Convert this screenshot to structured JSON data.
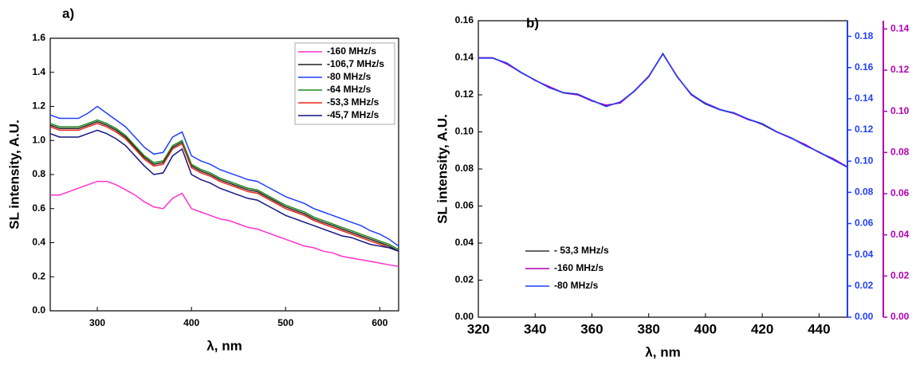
{
  "chart_data": [
    {
      "type": "line",
      "title": "a)",
      "xlabel": "λ, nm",
      "ylabel": "SL intensity, A.U.",
      "legend": "upper right",
      "xlim": [
        250,
        620
      ],
      "xticks": [
        300,
        400,
        500,
        600
      ],
      "ylim": [
        0,
        1.6
      ],
      "yticks": [
        {
          "value": 0,
          "label": "0.0"
        },
        0.2,
        0.4,
        0.6,
        0.8,
        {
          "value": 1,
          "label": "1.0"
        },
        1.2,
        1.4,
        1.6
      ],
      "x": [
        250,
        260,
        270,
        280,
        290,
        300,
        310,
        320,
        330,
        340,
        350,
        360,
        370,
        380,
        390,
        400,
        410,
        420,
        430,
        440,
        450,
        460,
        470,
        480,
        490,
        500,
        510,
        520,
        530,
        540,
        550,
        560,
        570,
        580,
        590,
        600,
        610,
        620
      ],
      "series": [
        {
          "name": "-160 MHz/s",
          "color": "#ff33cc",
          "values": [
            0.68,
            0.68,
            0.7,
            0.72,
            0.74,
            0.76,
            0.76,
            0.74,
            0.71,
            0.68,
            0.64,
            0.61,
            0.6,
            0.66,
            0.69,
            0.6,
            0.58,
            0.56,
            0.54,
            0.53,
            0.51,
            0.49,
            0.48,
            0.46,
            0.44,
            0.42,
            0.4,
            0.38,
            0.37,
            0.35,
            0.34,
            0.32,
            0.31,
            0.3,
            0.29,
            0.28,
            0.27,
            0.26
          ]
        },
        {
          "name": "-106,7 MHz/s",
          "color": "#222222",
          "values": [
            1.09,
            1.07,
            1.07,
            1.07,
            1.09,
            1.11,
            1.09,
            1.06,
            1.02,
            0.96,
            0.9,
            0.86,
            0.87,
            0.96,
            0.99,
            0.85,
            0.82,
            0.8,
            0.77,
            0.75,
            0.73,
            0.71,
            0.7,
            0.67,
            0.64,
            0.61,
            0.59,
            0.57,
            0.54,
            0.52,
            0.5,
            0.48,
            0.46,
            0.44,
            0.42,
            0.4,
            0.38,
            0.35
          ]
        },
        {
          "name": "-80 MHz/s",
          "color": "#1f3fff",
          "values": [
            1.15,
            1.13,
            1.13,
            1.13,
            1.16,
            1.2,
            1.16,
            1.12,
            1.08,
            1.02,
            0.96,
            0.92,
            0.93,
            1.02,
            1.05,
            0.91,
            0.88,
            0.86,
            0.83,
            0.81,
            0.79,
            0.77,
            0.76,
            0.73,
            0.7,
            0.67,
            0.65,
            0.63,
            0.6,
            0.58,
            0.56,
            0.54,
            0.52,
            0.5,
            0.47,
            0.45,
            0.42,
            0.38
          ]
        },
        {
          "name": "-64 MHz/s",
          "color": "#1e8a1e",
          "values": [
            1.1,
            1.08,
            1.08,
            1.08,
            1.1,
            1.12,
            1.1,
            1.07,
            1.03,
            0.97,
            0.91,
            0.87,
            0.88,
            0.97,
            1.0,
            0.86,
            0.83,
            0.81,
            0.78,
            0.76,
            0.74,
            0.72,
            0.71,
            0.68,
            0.65,
            0.62,
            0.6,
            0.58,
            0.55,
            0.53,
            0.51,
            0.49,
            0.47,
            0.45,
            0.43,
            0.41,
            0.39,
            0.36
          ]
        },
        {
          "name": "-53,3 MHz/s",
          "color": "#e8261a",
          "values": [
            1.08,
            1.06,
            1.06,
            1.06,
            1.08,
            1.1,
            1.08,
            1.05,
            1.01,
            0.95,
            0.89,
            0.85,
            0.86,
            0.95,
            0.98,
            0.84,
            0.81,
            0.79,
            0.76,
            0.74,
            0.72,
            0.7,
            0.69,
            0.66,
            0.63,
            0.6,
            0.58,
            0.56,
            0.53,
            0.51,
            0.49,
            0.47,
            0.45,
            0.43,
            0.41,
            0.39,
            0.37,
            0.35
          ]
        },
        {
          "name": "-45,7 MHz/s",
          "color": "#141480",
          "values": [
            1.04,
            1.02,
            1.02,
            1.02,
            1.04,
            1.06,
            1.04,
            1.01,
            0.97,
            0.91,
            0.85,
            0.8,
            0.81,
            0.91,
            0.95,
            0.8,
            0.77,
            0.75,
            0.72,
            0.7,
            0.68,
            0.66,
            0.65,
            0.62,
            0.59,
            0.56,
            0.54,
            0.52,
            0.5,
            0.48,
            0.46,
            0.44,
            0.43,
            0.41,
            0.39,
            0.38,
            0.37,
            0.35
          ]
        }
      ]
    },
    {
      "type": "line",
      "title": "b)",
      "xlabel": "λ, nm",
      "ylabel": "SL intensity, A.U.",
      "legend": "lower left",
      "xlim": [
        320,
        450
      ],
      "xticks": [
        320,
        340,
        360,
        380,
        400,
        420,
        440
      ],
      "ylim": [
        0,
        0.16
      ],
      "yticks": [
        {
          "value": 0,
          "label": "0.00"
        },
        0.02,
        0.04,
        0.06,
        0.08,
        {
          "value": 0.1,
          "label": "0.10"
        },
        0.12,
        0.14,
        0.16
      ],
      "y2lim": [
        0,
        0.19
      ],
      "y2ticks": [
        {
          "value": 0,
          "label": "0.00"
        },
        0.02,
        0.04,
        0.06,
        0.08,
        {
          "value": 0.1,
          "label": "0.10"
        },
        0.12,
        0.14,
        0.16,
        0.18
      ],
      "y3lim": [
        0,
        0.144
      ],
      "y3ticks": [
        {
          "value": 0,
          "label": "0.00"
        },
        0.02,
        0.04,
        0.06,
        0.08,
        {
          "value": 0.1,
          "label": "0.10"
        },
        0.12,
        0.14
      ],
      "x": [
        320,
        325,
        330,
        335,
        340,
        345,
        350,
        355,
        360,
        365,
        370,
        375,
        380,
        385,
        390,
        395,
        400,
        405,
        410,
        415,
        420,
        425,
        430,
        435,
        440,
        445,
        450
      ],
      "series": [
        {
          "name": "- 53,3 MHz/s",
          "color": "#333333",
          "values": [
            0.14,
            0.14,
            0.137,
            0.132,
            0.128,
            0.124,
            0.121,
            0.12,
            0.117,
            0.114,
            0.116,
            0.122,
            0.13,
            0.142,
            0.13,
            0.12,
            0.115,
            0.112,
            0.11,
            0.107,
            0.104,
            0.1,
            0.097,
            0.093,
            0.089,
            0.085,
            0.081
          ]
        },
        {
          "name": "-160 MHz/s",
          "color": "#b000b0",
          "axis": "y3",
          "values": [
            0.126,
            0.126,
            0.123,
            0.119,
            0.115,
            0.112,
            0.109,
            0.108,
            0.105,
            0.103,
            0.104,
            0.11,
            0.117,
            0.128,
            0.117,
            0.108,
            0.104,
            0.101,
            0.099,
            0.096,
            0.094,
            0.09,
            0.087,
            0.084,
            0.08,
            0.077,
            0.073
          ]
        },
        {
          "name": "-80 MHz/s",
          "color": "#1f3fff",
          "axis": "y2",
          "values": [
            0.166,
            0.166,
            0.163,
            0.157,
            0.152,
            0.147,
            0.144,
            0.143,
            0.139,
            0.135,
            0.138,
            0.145,
            0.154,
            0.169,
            0.154,
            0.143,
            0.137,
            0.133,
            0.131,
            0.127,
            0.124,
            0.119,
            0.115,
            0.11,
            0.106,
            0.101,
            0.096
          ]
        }
      ]
    }
  ]
}
